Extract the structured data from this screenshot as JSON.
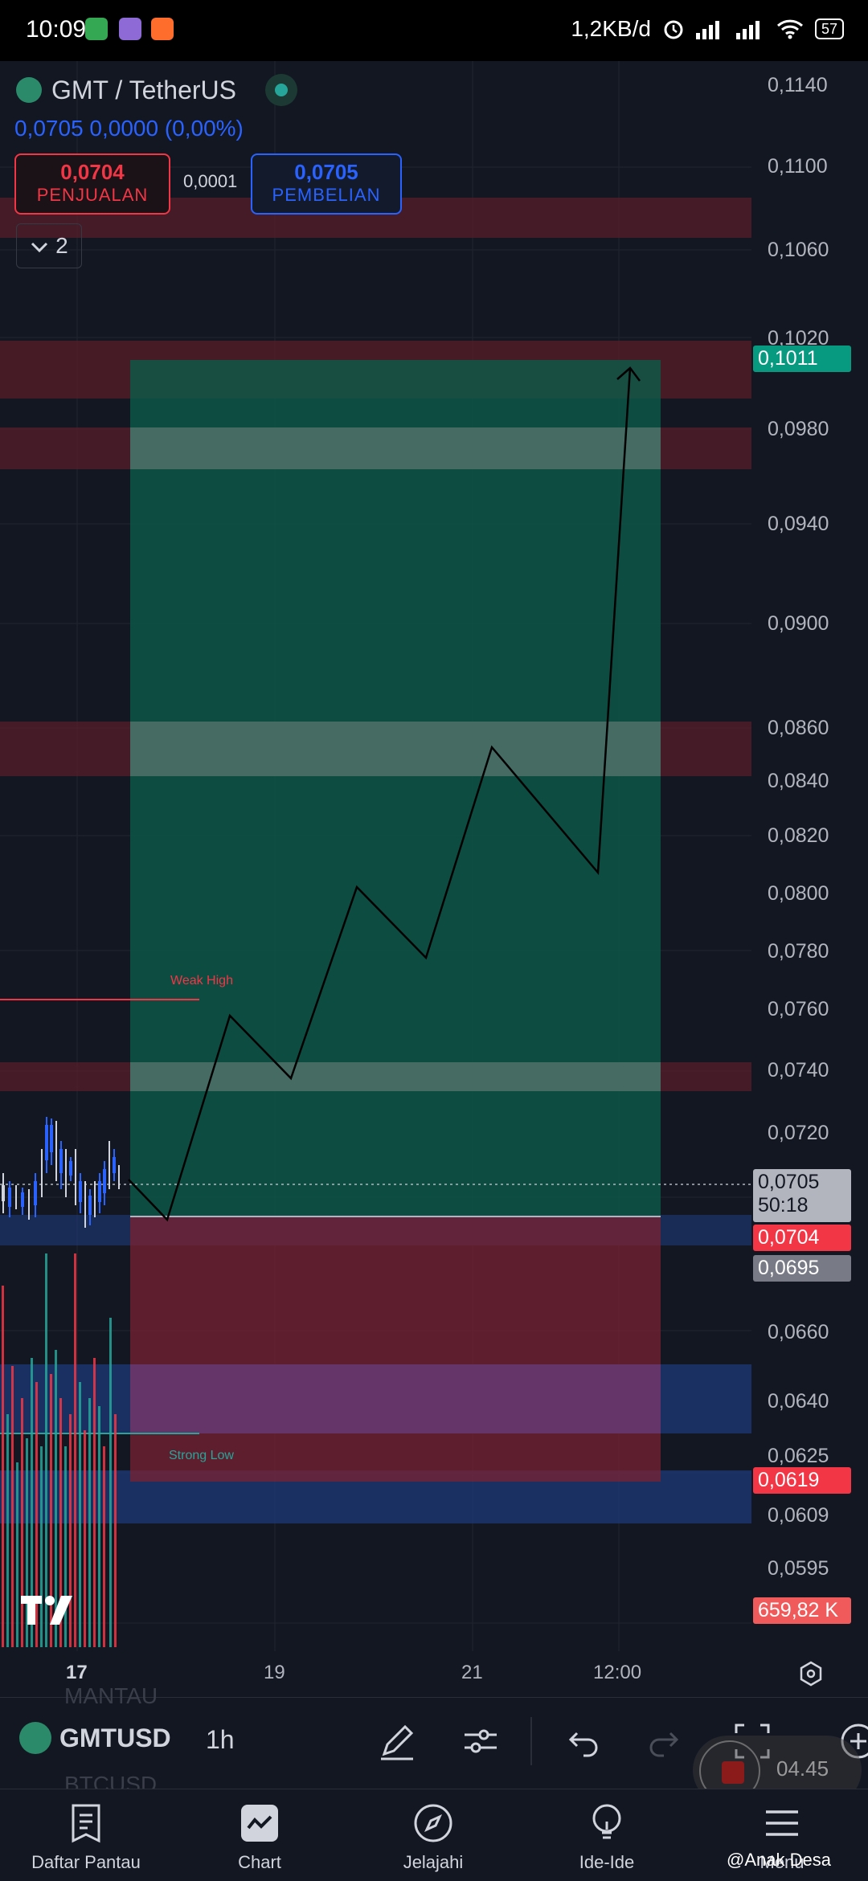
{
  "status_bar": {
    "time": "10:09",
    "network_speed": "1,2KB/d",
    "battery": "57"
  },
  "header": {
    "symbol_title": "GMT / TetherUS",
    "quote": "0,0705  0,0000 (0,00%)",
    "sell_price": "0,0704",
    "sell_label": "PENJUALAN",
    "spread": "0,0001",
    "buy_price": "0,0705",
    "buy_label": "PEMBELIAN",
    "collapse_count": "2"
  },
  "chart": {
    "annotations": {
      "weak_high": "Weak High",
      "strong_low": "Strong Low"
    },
    "price_axis": [
      "0,1140",
      "0,1100",
      "0,1060",
      "0,1020",
      "0,0980",
      "0,0940",
      "0,0900",
      "0,0860",
      "0,0840",
      "0,0820",
      "0,0800",
      "0,0780",
      "0,0760",
      "0,0740",
      "0,0720",
      "0,0660",
      "0,0640",
      "0,0625",
      "0,0609",
      "0,0595"
    ],
    "tags": {
      "target": "0,1011",
      "last": "0,0705",
      "countdown": "50:18",
      "bid": "0,0704",
      "entry": "0,0695",
      "stop": "0,0619",
      "volume": "659,82 K"
    },
    "time_axis": [
      "17",
      "19",
      "21",
      "12:00"
    ],
    "accent_colors": {
      "up": "#26a69a",
      "down": "#f23645",
      "blue": "#2962ff"
    }
  },
  "toolbar": {
    "symbol": "GMTUSD",
    "interval": "1h",
    "ghost_above": "MANTAU",
    "ghost_below": "BTCUSD",
    "record_time": "04.45"
  },
  "nav": {
    "watchlist": "Daftar Pantau",
    "chart": "Chart",
    "explore": "Jelajahi",
    "ideas": "Ide-Ide",
    "menu": "Menu"
  },
  "watermark": "@Anak Desa"
}
